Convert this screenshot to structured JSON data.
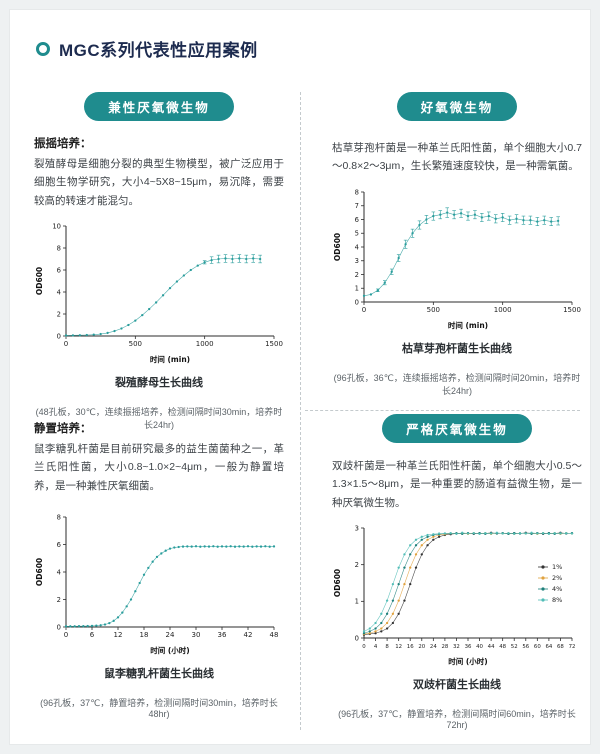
{
  "page": {
    "title": "MGC系列代表性应用案例"
  },
  "colors": {
    "accent": "#1f8c8e",
    "data_teal": "#2a9d9c",
    "title_navy": "#1d2b4f"
  },
  "sections": {
    "facultative": {
      "badge": "兼性厌氧微生物",
      "method_label": "振摇培养：",
      "description": "裂殖酵母是细胞分裂的典型生物模型，被广泛应用于细胞生物学研究，大小4~5X8~15μm，易沉降，需要较高的转速才能混匀。",
      "caption": "裂殖酵母生长曲线",
      "note": "(48孔板，30℃，连续振摇培养，检测间隔时间30min，培养时长24hr)"
    },
    "aerobic": {
      "badge": "好氧微生物",
      "description": "枯草芽孢杆菌是一种革兰氏阳性菌，单个细胞大小0.7～0.8×2～3μm，生长繁殖速度较快，是一种需氧菌。",
      "caption": "枯草芽孢杆菌生长曲线",
      "note": "(96孔板，36℃，连续振摇培养，检测间隔时间20min，培养时长24hr)"
    },
    "static_culture": {
      "method_label": "静置培养：",
      "description": "鼠李糖乳杆菌是目前研究最多的益生菌菌种之一，革兰氏阳性菌，大小0.8~1.0×2~4μm，一般为静置培养，是一种兼性厌氧细菌。",
      "caption": "鼠李糖乳杆菌生长曲线",
      "note": "(96孔板，37℃，静置培养，检测间隔时间30min，培养时长48hr)"
    },
    "strict_anaerobe": {
      "badge": "严格厌氧微生物",
      "description": "双歧杆菌是一种革兰氏阳性杆菌，单个细胞大小0.5～1.3×1.5～8μm，是一种重要的肠道有益微生物，是一种厌氧微生物。",
      "caption": "双歧杆菌生长曲线",
      "note": "(96孔板，37℃，静置培养，检测间隔时间60min，培养时长72hr)"
    }
  },
  "chart_data": [
    {
      "id": "fission-yeast",
      "type": "scatter",
      "title": "裂殖酵母生长曲线",
      "xlabel": "时间 (min)",
      "ylabel": "OD600",
      "xlim": [
        0,
        1500
      ],
      "ylim": [
        0,
        10
      ],
      "xticks": [
        0,
        500,
        1000,
        1500
      ],
      "yticks": [
        0,
        2,
        4,
        6,
        8,
        10
      ],
      "legend": false,
      "x": [
        0,
        50,
        100,
        150,
        200,
        250,
        300,
        350,
        400,
        450,
        500,
        550,
        600,
        650,
        700,
        750,
        800,
        850,
        900,
        950,
        1000,
        1050,
        1100,
        1150,
        1200,
        1250,
        1300,
        1350,
        1400
      ],
      "series": [
        {
          "name": "OD600",
          "color": "#2a9d9c",
          "values": [
            0.05,
            0.06,
            0.07,
            0.09,
            0.12,
            0.18,
            0.28,
            0.45,
            0.68,
            1.0,
            1.4,
            1.9,
            2.45,
            3.05,
            3.7,
            4.35,
            4.95,
            5.5,
            6.0,
            6.4,
            6.7,
            6.9,
            7.0,
            7.05,
            7.0,
            7.05,
            7.0,
            7.05,
            7.0
          ],
          "errors": [
            0,
            0,
            0,
            0,
            0,
            0,
            0,
            0,
            0,
            0,
            0,
            0,
            0,
            0,
            0,
            0,
            0,
            0,
            0,
            0,
            0.15,
            0.3,
            0.35,
            0.35,
            0.35,
            0.35,
            0.35,
            0.35,
            0.35
          ]
        }
      ]
    },
    {
      "id": "bacillus-subtilis",
      "type": "scatter",
      "title": "枯草芽孢杆菌生长曲线",
      "xlabel": "时间 (min)",
      "ylabel": "OD600",
      "xlim": [
        0,
        1500
      ],
      "ylim": [
        0,
        8
      ],
      "xticks": [
        0,
        500,
        1000,
        1500
      ],
      "yticks": [
        0,
        1,
        2,
        3,
        4,
        5,
        6,
        7,
        8
      ],
      "legend": false,
      "x": [
        0,
        50,
        100,
        150,
        200,
        250,
        300,
        350,
        400,
        450,
        500,
        550,
        600,
        650,
        700,
        750,
        800,
        850,
        900,
        950,
        1000,
        1050,
        1100,
        1150,
        1200,
        1250,
        1300,
        1350,
        1400
      ],
      "series": [
        {
          "name": "OD600",
          "color": "#2a9d9c",
          "values": [
            0.45,
            0.55,
            0.85,
            1.4,
            2.2,
            3.2,
            4.2,
            5.0,
            5.6,
            6.0,
            6.25,
            6.35,
            6.5,
            6.35,
            6.45,
            6.25,
            6.35,
            6.15,
            6.25,
            6.05,
            6.15,
            5.95,
            6.05,
            5.95,
            5.95,
            5.85,
            5.95,
            5.85,
            5.9
          ],
          "errors": [
            0,
            0,
            0.1,
            0.15,
            0.2,
            0.25,
            0.3,
            0.3,
            0.3,
            0.3,
            0.3,
            0.3,
            0.35,
            0.3,
            0.3,
            0.3,
            0.3,
            0.3,
            0.3,
            0.3,
            0.3,
            0.3,
            0.3,
            0.3,
            0.3,
            0.3,
            0.3,
            0.3,
            0.3
          ]
        }
      ]
    },
    {
      "id": "lactobacillus-rhamnosus",
      "type": "scatter",
      "title": "鼠李糖乳杆菌生长曲线",
      "xlabel": "时间 (小时)",
      "ylabel": "OD600",
      "xlim": [
        0,
        48
      ],
      "ylim": [
        0,
        8
      ],
      "xticks": [
        0,
        6,
        12,
        18,
        24,
        30,
        36,
        42,
        48
      ],
      "yticks": [
        0,
        2,
        4,
        6,
        8
      ],
      "legend": false,
      "x": [
        0,
        1,
        2,
        3,
        4,
        5,
        6,
        7,
        8,
        9,
        10,
        11,
        12,
        13,
        14,
        15,
        16,
        17,
        18,
        19,
        20,
        21,
        22,
        23,
        24,
        25,
        26,
        27,
        28,
        29,
        30,
        31,
        32,
        33,
        34,
        35,
        36,
        37,
        38,
        39,
        40,
        41,
        42,
        43,
        44,
        45,
        46,
        47,
        48
      ],
      "series": [
        {
          "name": "OD600",
          "color": "#2a9d9c",
          "values": [
            0.05,
            0.05,
            0.05,
            0.06,
            0.06,
            0.07,
            0.08,
            0.1,
            0.13,
            0.18,
            0.28,
            0.45,
            0.7,
            1.05,
            1.5,
            2.0,
            2.6,
            3.2,
            3.8,
            4.3,
            4.75,
            5.1,
            5.35,
            5.55,
            5.7,
            5.78,
            5.82,
            5.85,
            5.86,
            5.85,
            5.87,
            5.84,
            5.86,
            5.85,
            5.87,
            5.84,
            5.86,
            5.85,
            5.87,
            5.84,
            5.86,
            5.85,
            5.87,
            5.84,
            5.86,
            5.85,
            5.87,
            5.84,
            5.86
          ]
        }
      ]
    },
    {
      "id": "bifidobacterium",
      "type": "scatter",
      "title": "双歧杆菌生长曲线",
      "xlabel": "时间 (小时)",
      "ylabel": "OD600",
      "xlim": [
        0,
        72
      ],
      "ylim": [
        0,
        3
      ],
      "xticks": [
        0,
        4,
        8,
        12,
        16,
        20,
        24,
        28,
        32,
        36,
        40,
        44,
        48,
        52,
        56,
        60,
        64,
        68,
        72
      ],
      "yticks": [
        0,
        1,
        2,
        3
      ],
      "legend": true,
      "x": [
        0,
        2,
        4,
        6,
        8,
        10,
        12,
        14,
        16,
        18,
        20,
        22,
        24,
        26,
        28,
        30,
        32,
        34,
        36,
        38,
        40,
        42,
        44,
        46,
        48,
        50,
        52,
        54,
        56,
        58,
        60,
        62,
        64,
        66,
        68,
        70,
        72
      ],
      "series": [
        {
          "name": "1%",
          "color": "#333333",
          "values": [
            0.09,
            0.11,
            0.13,
            0.18,
            0.26,
            0.41,
            0.66,
            1.02,
            1.47,
            1.92,
            2.28,
            2.53,
            2.68,
            2.76,
            2.81,
            2.83,
            2.85,
            2.85,
            2.86,
            2.84,
            2.86,
            2.85,
            2.87,
            2.85,
            2.86,
            2.84,
            2.86,
            2.85,
            2.87,
            2.85,
            2.86,
            2.84,
            2.86,
            2.85,
            2.87,
            2.85,
            2.86
          ]
        },
        {
          "name": "2%",
          "color": "#e0a23e",
          "values": [
            0.11,
            0.13,
            0.18,
            0.26,
            0.41,
            0.66,
            1.02,
            1.47,
            1.92,
            2.28,
            2.53,
            2.68,
            2.76,
            2.81,
            2.83,
            2.85,
            2.85,
            2.86,
            2.84,
            2.86,
            2.85,
            2.86,
            2.84,
            2.86,
            2.85,
            2.86,
            2.84,
            2.86,
            2.85,
            2.86,
            2.84,
            2.86,
            2.85,
            2.86,
            2.84,
            2.86,
            2.85
          ]
        },
        {
          "name": "4%",
          "color": "#1d7f7a",
          "values": [
            0.13,
            0.18,
            0.26,
            0.41,
            0.66,
            1.02,
            1.47,
            1.92,
            2.28,
            2.53,
            2.68,
            2.76,
            2.81,
            2.83,
            2.85,
            2.85,
            2.86,
            2.84,
            2.86,
            2.85,
            2.86,
            2.84,
            2.86,
            2.85,
            2.86,
            2.84,
            2.86,
            2.85,
            2.86,
            2.84,
            2.86,
            2.85,
            2.86,
            2.84,
            2.86,
            2.85,
            2.86
          ]
        },
        {
          "name": "8%",
          "color": "#52bdb7",
          "values": [
            0.18,
            0.26,
            0.41,
            0.66,
            1.02,
            1.47,
            1.92,
            2.28,
            2.53,
            2.68,
            2.76,
            2.81,
            2.83,
            2.85,
            2.85,
            2.86,
            2.84,
            2.87,
            2.85,
            2.86,
            2.84,
            2.86,
            2.85,
            2.87,
            2.85,
            2.86,
            2.84,
            2.86,
            2.85,
            2.87,
            2.85,
            2.86,
            2.84,
            2.86,
            2.85,
            2.86,
            2.85
          ]
        }
      ]
    }
  ]
}
